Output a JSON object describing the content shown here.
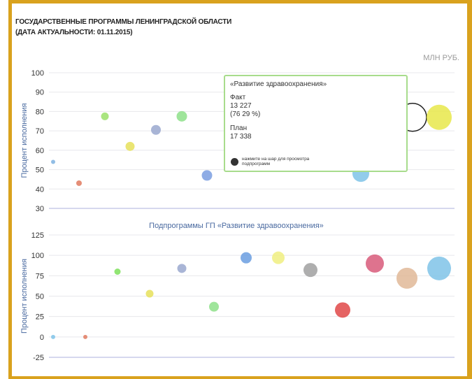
{
  "header": {
    "title_line1": "ГОСУДАРСТВЕННЫЕ ПРОГРАММЫ ЛЕНИНГРАДСКОЙ ОБЛАСТИ",
    "title_line2": "(ДАТА АКТУАЛЬНОСТИ: 01.11.2015)",
    "unit": "МЛН РУБ."
  },
  "colors": {
    "frame": "#d9a21e",
    "tooltip_border": "#a8dc8c",
    "axis_text": "#4a6aa0"
  },
  "tooltip": {
    "name": "«Развитие здравоохранения»",
    "fact_label": "Факт",
    "fact_value": "13 227",
    "fact_percent": "(76 29 %)",
    "plan_label": "План",
    "plan_value": "17 338",
    "hint": "нажмите на шар для просмотра подпрограмм",
    "hint_icon": "globe-icon"
  },
  "chart_data": [
    {
      "type": "scatter",
      "subtitle": "",
      "ylabel": "Процент исполнения",
      "ylim": [
        30,
        100
      ],
      "yticks": [
        "100",
        "90",
        "80",
        "70",
        "60",
        "50",
        "40",
        "30"
      ],
      "grid": true,
      "points": [
        {
          "x": 1,
          "y": 54,
          "size": 1,
          "color": "#7fb3e0"
        },
        {
          "x": 2,
          "y": 43,
          "size": 2,
          "color": "#e07a5f"
        },
        {
          "x": 3,
          "y": 77.5,
          "size": 2,
          "color": "#9be06a"
        },
        {
          "x": 4,
          "y": 62,
          "size": 3,
          "color": "#e6e05a"
        },
        {
          "x": 5,
          "y": 70.5,
          "size": 3,
          "color": "#9aa8cf"
        },
        {
          "x": 6,
          "y": 77.5,
          "size": 3,
          "color": "#8ee08a"
        },
        {
          "x": 7,
          "y": 47,
          "size": 3,
          "color": "#7a9ee0"
        },
        {
          "x": 8,
          "y": 48,
          "size": 5,
          "color": "#7fc3e8"
        },
        {
          "x": 9,
          "y": 77,
          "size": 6,
          "color": "#ffffff"
        },
        {
          "x": 10,
          "y": 77,
          "size": 7,
          "color": "#e8e84a"
        }
      ]
    },
    {
      "type": "scatter",
      "subtitle": "Подпрограммы ГП «Развитие здравоохранения»",
      "ylabel": "Процент исполнения",
      "ylim": [
        -25,
        125
      ],
      "yticks": [
        "125",
        "100",
        "75",
        "50",
        "25",
        "0",
        "-25"
      ],
      "grid": true,
      "points": [
        {
          "x": 1,
          "y": 0,
          "size": 1,
          "color": "#7fc3e8"
        },
        {
          "x": 2,
          "y": 0,
          "size": 1,
          "color": "#e07a5f"
        },
        {
          "x": 3,
          "y": 80,
          "size": 2,
          "color": "#7ee05a"
        },
        {
          "x": 4,
          "y": 53,
          "size": 2,
          "color": "#e6e05a"
        },
        {
          "x": 5,
          "y": 84,
          "size": 3,
          "color": "#9aa8cf"
        },
        {
          "x": 6,
          "y": 37,
          "size": 3,
          "color": "#8ee08a"
        },
        {
          "x": 7,
          "y": 97,
          "size": 4,
          "color": "#6a9ee0"
        },
        {
          "x": 8,
          "y": 97,
          "size": 4,
          "color": "#f0ee80"
        },
        {
          "x": 9,
          "y": 82,
          "size": 5,
          "color": "#a0a0a0"
        },
        {
          "x": 10,
          "y": 33,
          "size": 5,
          "color": "#e04848"
        },
        {
          "x": 11,
          "y": 90,
          "size": 6,
          "color": "#d85a7a"
        },
        {
          "x": 12,
          "y": 72,
          "size": 7,
          "color": "#e0b898"
        },
        {
          "x": 13,
          "y": 84,
          "size": 8,
          "color": "#7fc3e8"
        }
      ]
    }
  ]
}
